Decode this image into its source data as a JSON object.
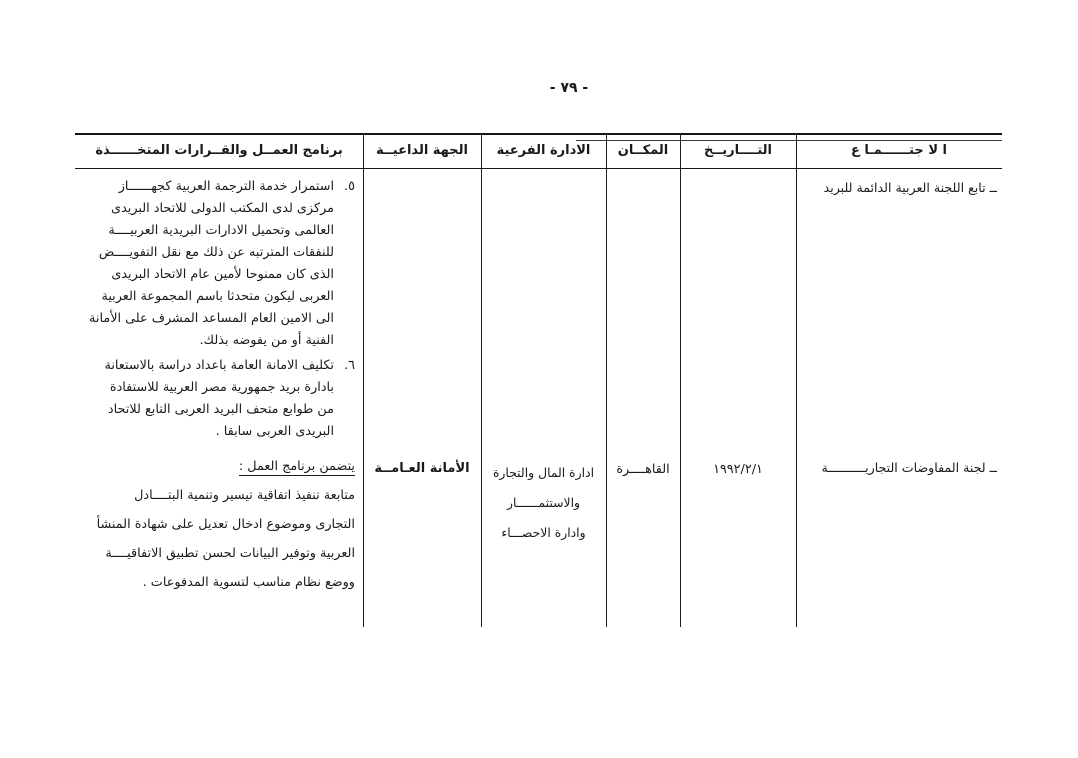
{
  "page_number": "- ٧٩ -",
  "table": {
    "headers": {
      "meeting": "ا لا جتــــــمـا ع",
      "date": "التــــاريــخ",
      "place": "المكــان",
      "sub_admin": "الادارة الفرعية",
      "host": "الجهة الداعيــة",
      "program": "برنامج العمــل والقــرارات المتخــــــذة"
    },
    "row1": {
      "meeting": "ــ  تابع اللجنة العربية الدائمة للبريد",
      "items": [
        {
          "num": "٥.",
          "text": "استمرار خدمة الترجمة العربية كجهــــــاز\nمركزى لدى المكتب الدولى للاتحاد البريدى\nالعالمى وتحميل الادارات البريدية العربيــــة\nللنفقات المترتبه عن ذلك مع نقل التفويــــض\nالذى كان ممنوحا لأمين عام الاتحاد البريدى\nالعربى ليكون متحدثا باسم المجموعة العربية\nالى الامين العام المساعد المشرف على الأمانة\nالفنية أو من يفوضه بذلك."
        },
        {
          "num": "٦.",
          "text": "تكليف الامانة العامة باعداد دراسة بالاستعانة\nبادارة بريد جمهورية مصر العربية للاستفادة\nمن طوابع متحف البريد العربى التابع للاتحاد\nالبريدى العربى سابقا ."
        }
      ]
    },
    "row2": {
      "meeting": "ــ  لجنة المفاوضات التجاريــــــــــة",
      "date": "١٩٩٢/٢/١",
      "place": "القاهــــرة",
      "sub_admin": "ادارة المال والتجارة\nوالاستثمــــــار\nوادارة الاحصـــاء",
      "host": "الأمانة العـامــة",
      "program_heading": "يتضمن برنامج العمل :",
      "program_text": "متابعة تنفيذ اتفاقية تيسير وتنمية البتــــادل\nالتجارى وموضوع ادخال تعديل على شهادة المنشأ\nالعربية وتوفير البيانات لحسن تطبيق الاتفاقيــــة\nووضع نظام مناسب لتسوية المدفوعات ."
    }
  }
}
